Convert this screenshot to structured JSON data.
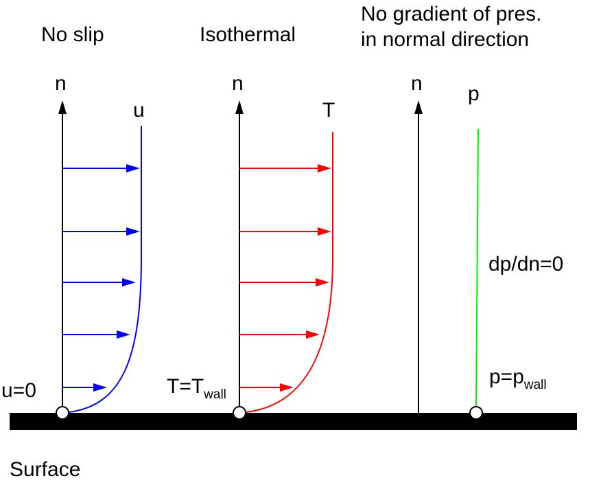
{
  "panels": {
    "no_slip": {
      "title": "No slip",
      "axis_label": "n",
      "profile_label": "u",
      "wall_condition": "u=0",
      "color": "#0000ff"
    },
    "isothermal": {
      "title": "Isothermal",
      "axis_label": "n",
      "profile_label": "T",
      "wall_condition_main": "T=T",
      "wall_condition_sub": "wall",
      "color": "#ff0000"
    },
    "pressure": {
      "title_line1": "No gradient of pres.",
      "title_line2": "in normal direction",
      "axis_label": "n",
      "profile_label": "p",
      "gradient_condition": "dp/dn=0",
      "wall_condition_main": "p=p",
      "wall_condition_sub": "wall",
      "color": "#00ee00"
    }
  },
  "surface": {
    "label": "Surface",
    "color": "#000000"
  }
}
